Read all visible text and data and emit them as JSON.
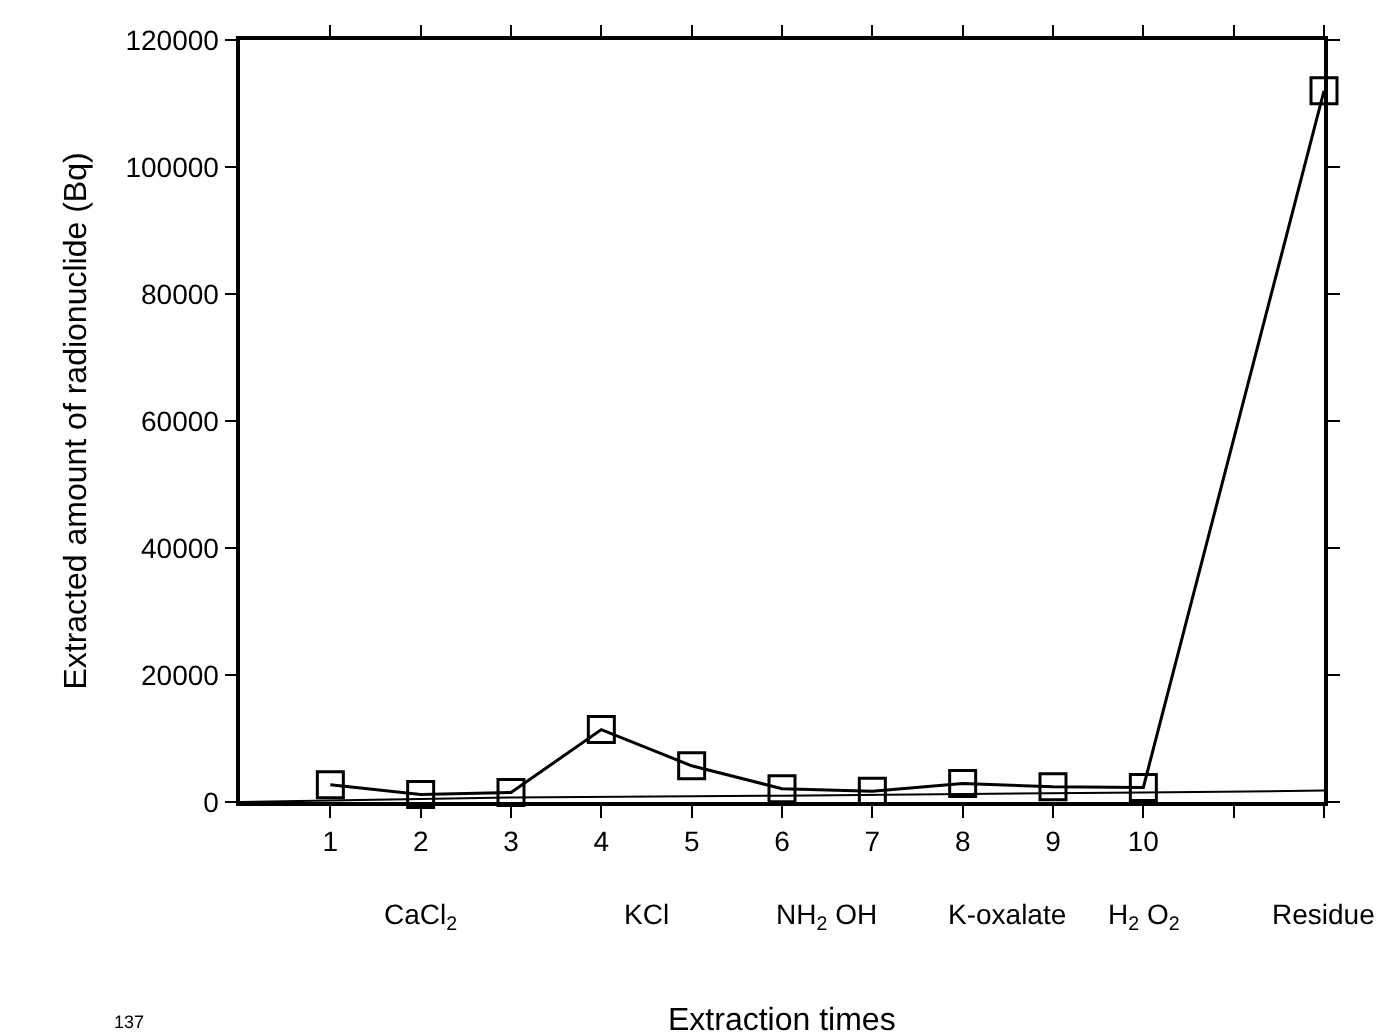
{
  "chart_data": {
    "type": "line",
    "xlabel": "Extraction times",
    "ylabel": "Extracted amount of radionuclide (Bq)",
    "xlim": [
      0,
      12
    ],
    "ylim": [
      0,
      120000
    ],
    "xticks": [
      1,
      2,
      3,
      4,
      5,
      6,
      7,
      8,
      9,
      10,
      {
        "value": 11,
        "label": null
      },
      {
        "value": 12,
        "label": null
      }
    ],
    "yticks": [
      0,
      20000,
      40000,
      60000,
      80000,
      100000,
      120000
    ],
    "series": [
      {
        "color": "#000000",
        "marker": "square",
        "x": [
          1,
          2,
          3,
          4,
          5,
          6,
          7,
          8,
          9,
          10,
          12
        ],
        "values": [
          2700,
          1200,
          1500,
          11400,
          5700,
          2100,
          1700,
          2900,
          2400,
          2300,
          112000
        ]
      },
      {
        "color": "#000000",
        "marker": "none",
        "x": [
          0,
          3,
          6,
          10,
          12
        ],
        "values": [
          0,
          700,
          1000,
          1500,
          1800
        ]
      }
    ],
    "annotations": [
      "CaCl$_{2}$",
      "KCl",
      "NH$_{2}$ OH",
      "K-oxalate",
      "H$_{2}$ O$_{2}$",
      "Residue",
      "137"
    ],
    "line_style": "solid"
  }
}
